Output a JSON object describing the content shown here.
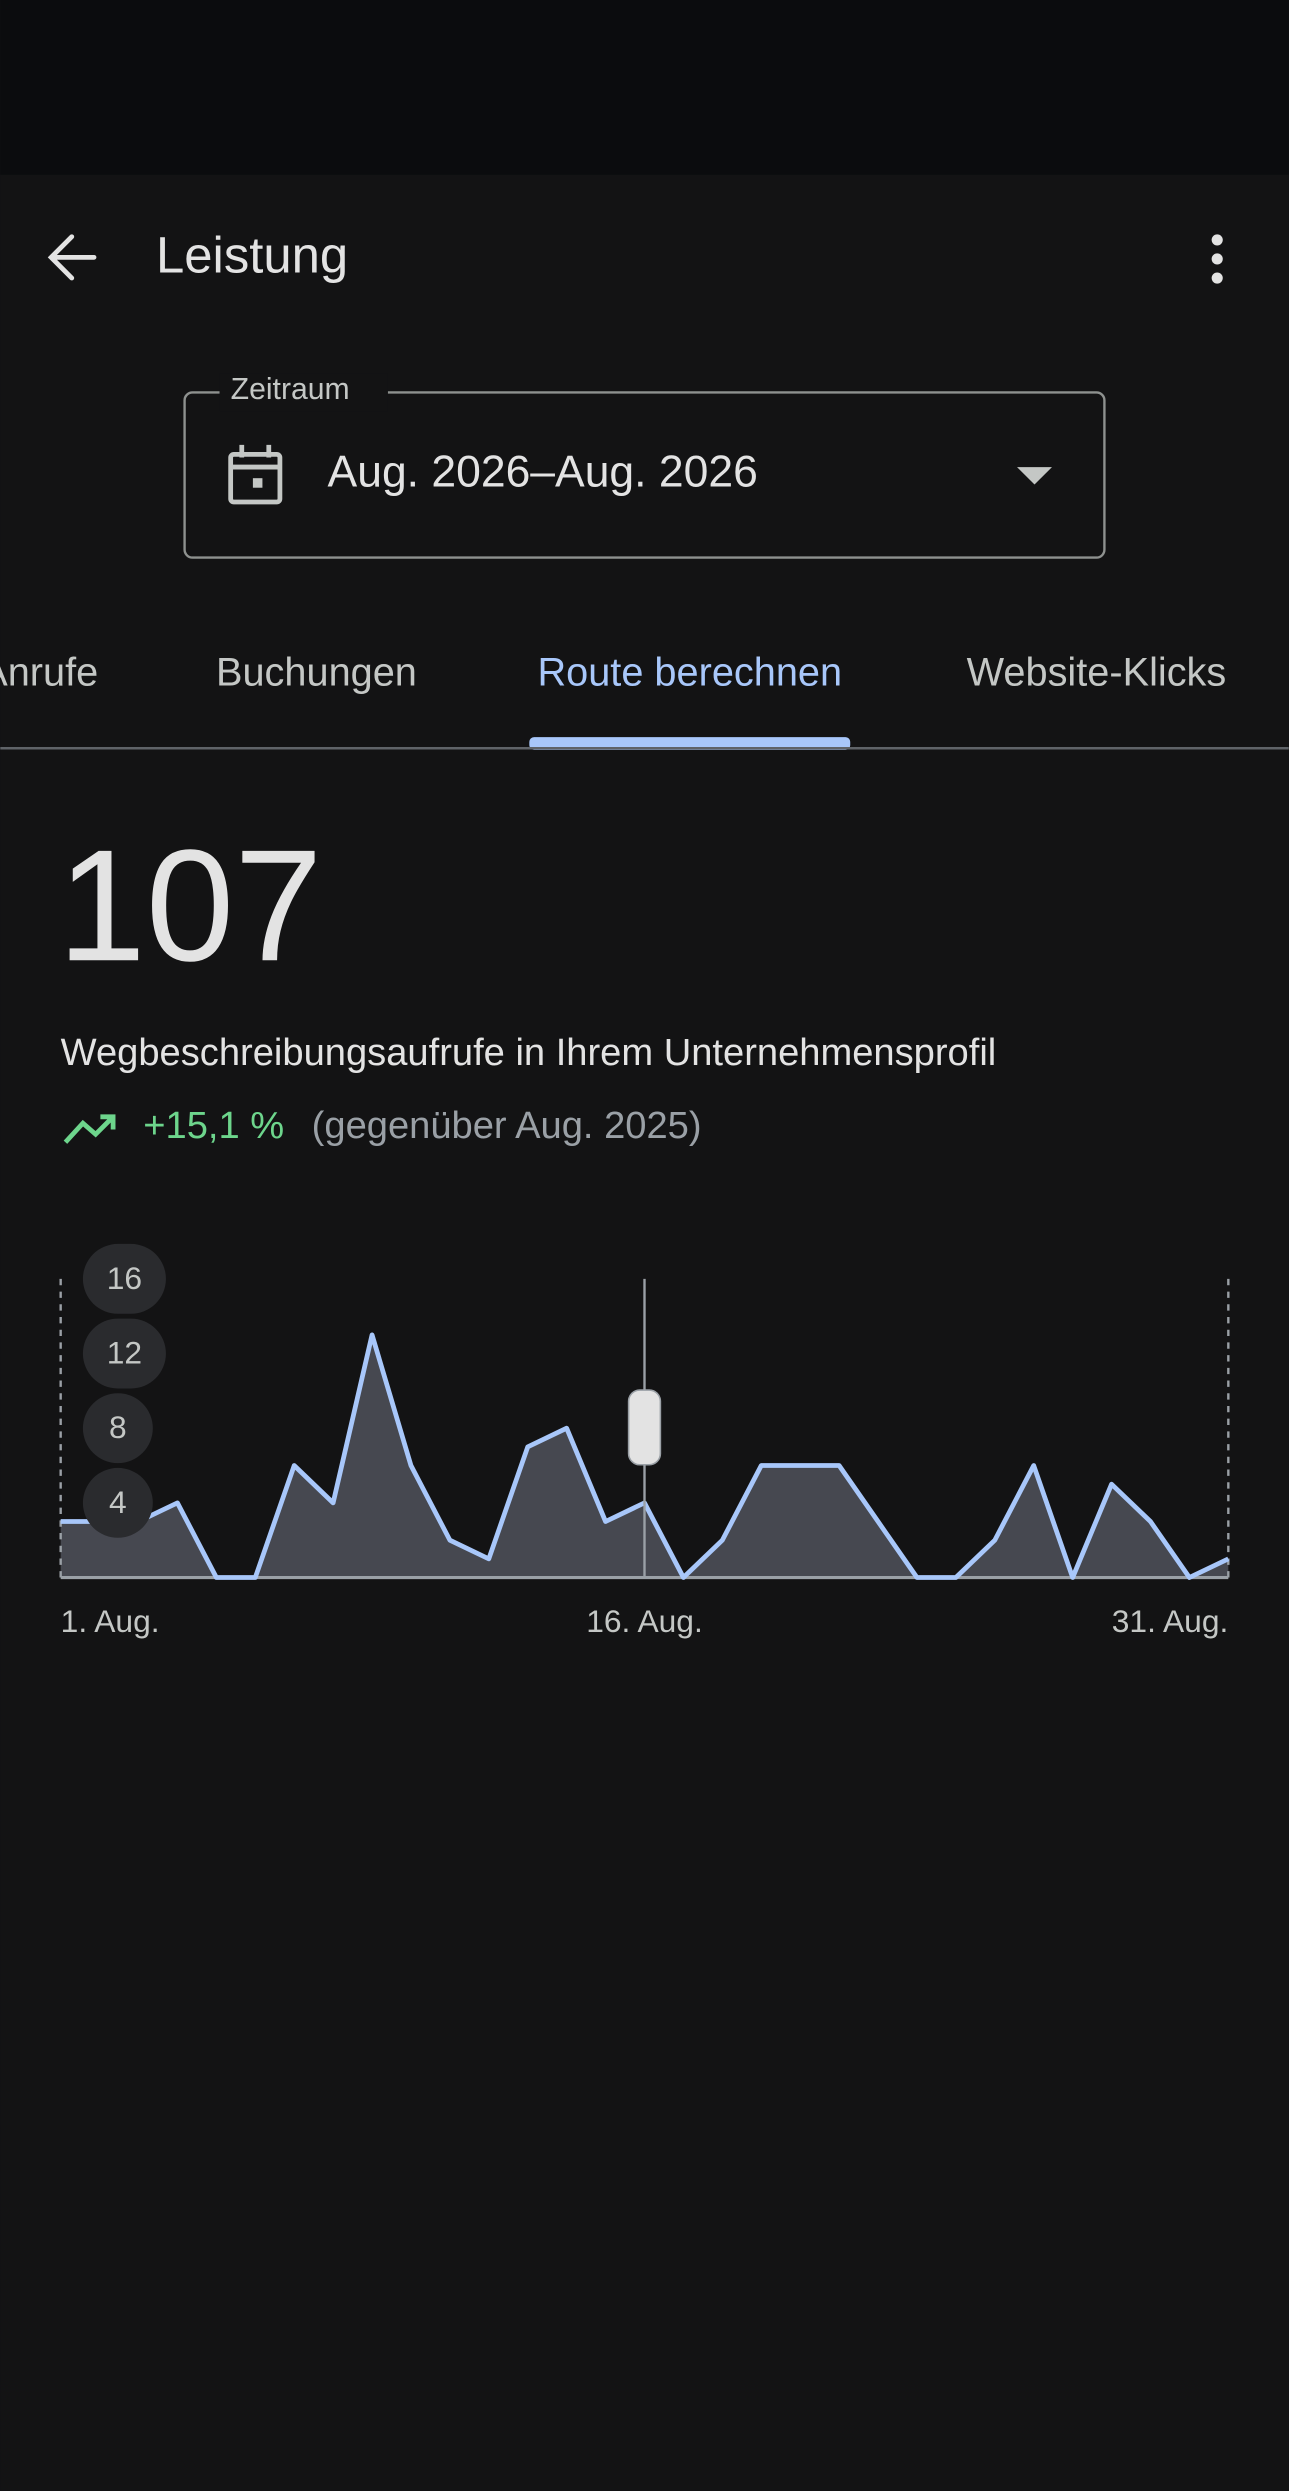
{
  "header": {
    "title": "Leistung"
  },
  "date_field": {
    "label": "Zeitraum",
    "value": "Aug. 2026–Aug. 2026"
  },
  "tabs": [
    "Anrufe",
    "Buchungen",
    "Route berechnen",
    "Website-Klicks"
  ],
  "metric": {
    "value": "107",
    "description": "Wegbeschreibungsaufrufe in Ihrem Unternehmensprofil",
    "change": "+15,1 %",
    "comparison": "(gegenüber Aug. 2025)"
  },
  "chart_data": {
    "type": "area",
    "color": "#a8c7fa",
    "categories": [
      "1. Aug.",
      null,
      null,
      null,
      null,
      null,
      null,
      null,
      null,
      null,
      null,
      null,
      null,
      null,
      null,
      "16. Aug.",
      null,
      null,
      null,
      null,
      null,
      null,
      null,
      null,
      null,
      null,
      null,
      null,
      null,
      null,
      "31. Aug."
    ],
    "values": [
      3,
      3,
      3,
      4,
      0,
      0,
      6,
      4,
      13,
      6,
      2,
      1,
      7,
      8,
      3,
      4,
      0,
      2,
      6,
      6,
      6,
      3,
      0,
      0,
      2,
      6,
      0,
      5,
      3,
      0,
      1
    ],
    "ylim": [
      0,
      16
    ],
    "yticks": [
      4,
      8,
      12,
      16
    ]
  }
}
